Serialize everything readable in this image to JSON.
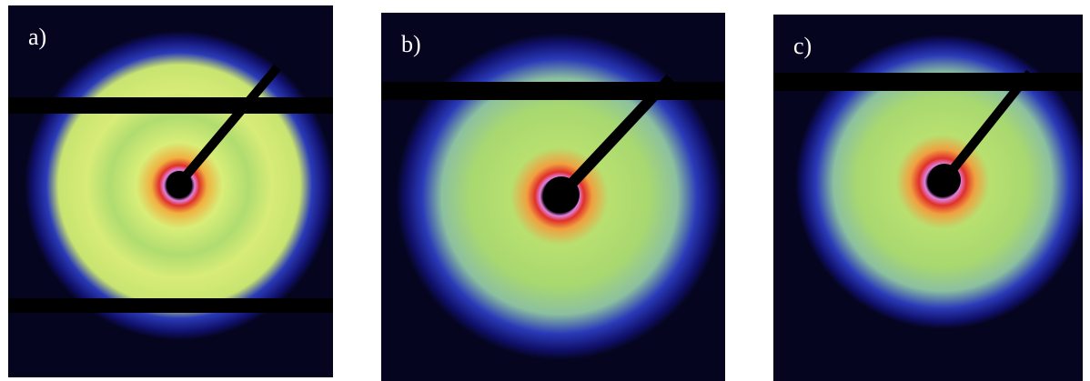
{
  "panels": [
    {
      "id": "a",
      "label": "a)"
    },
    {
      "id": "b",
      "label": "b)"
    },
    {
      "id": "c",
      "label": "c)"
    }
  ],
  "colors": {
    "background": "#05051f",
    "halo": "#10106a",
    "outer_ring": "#2a3ab8",
    "ring": "#a8d870",
    "core": "#d8ee78",
    "inner_orange": "#f08a2a",
    "inner_magenta": "#e080e0",
    "beamstop": "#000000",
    "label": "#ffffff",
    "page_background": "#ffffff"
  }
}
